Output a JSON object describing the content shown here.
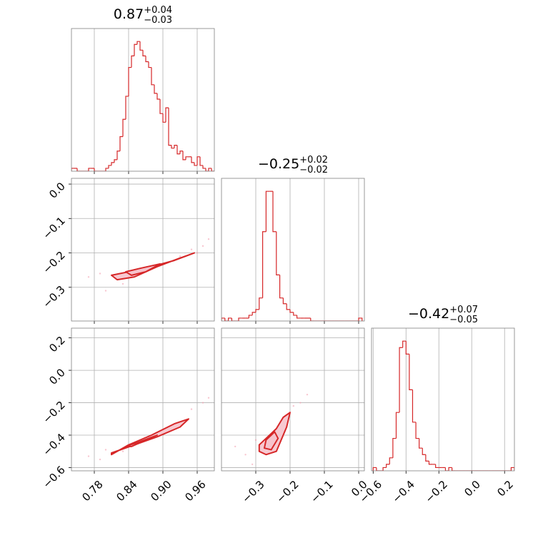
{
  "chart_data": [
    {
      "type": "histogram",
      "color": "#d62728",
      "title": {
        "value": "0.87",
        "upper": "+0.04",
        "lower": "−0.03"
      },
      "bins": [
        0.74,
        0.745,
        0.75,
        0.755,
        0.76,
        0.765,
        0.77,
        0.775,
        0.78,
        0.785,
        0.79,
        0.795,
        0.8,
        0.805,
        0.81,
        0.815,
        0.82,
        0.825,
        0.83,
        0.835,
        0.84,
        0.845,
        0.85,
        0.855,
        0.86,
        0.865,
        0.87,
        0.875,
        0.88,
        0.885,
        0.89,
        0.895,
        0.9,
        0.905,
        0.91,
        0.915,
        0.92,
        0.925,
        0.93,
        0.935,
        0.94,
        0.945,
        0.95,
        0.955,
        0.96,
        0.965,
        0.97,
        0.975,
        0.98,
        0.985,
        0.99
      ],
      "values": [
        1,
        1,
        0,
        0,
        0,
        0,
        1,
        1,
        0,
        0,
        0,
        0,
        1,
        2,
        3,
        4,
        7,
        12,
        18,
        26,
        36,
        40,
        44,
        45,
        42,
        40,
        38,
        36,
        30,
        27,
        25,
        20,
        17,
        22,
        9,
        8,
        9,
        6,
        7,
        4,
        5,
        5,
        3,
        2,
        5,
        2,
        1,
        0,
        1,
        0
      ]
    },
    {
      "type": "contour",
      "color": "#d62728",
      "fill": "#f6c3cc",
      "ylim": [
        -0.398,
        0.0167
      ],
      "yticks": [
        {
          "value": 0.0,
          "label": "0.0"
        },
        {
          "value": -0.1,
          "label": "−0.1"
        },
        {
          "value": -0.2,
          "label": "−0.2"
        },
        {
          "value": -0.3,
          "label": "−0.3"
        }
      ],
      "points": {
        "x": [
          0.77,
          0.79,
          0.8,
          0.93,
          0.95,
          0.97,
          0.98,
          0.83,
          0.96
        ],
        "y": [
          -0.27,
          -0.26,
          -0.31,
          -0.21,
          -0.19,
          -0.18,
          -0.16,
          -0.29,
          -0.2
        ]
      },
      "contours": [
        {
          "x": [
            0.81,
            0.84,
            0.88,
            0.92,
            0.955,
            0.93,
            0.89,
            0.85,
            0.82
          ],
          "y": [
            -0.265,
            -0.255,
            -0.24,
            -0.222,
            -0.2,
            -0.215,
            -0.24,
            -0.27,
            -0.278
          ]
        },
        {
          "x": [
            0.835,
            0.86,
            0.895,
            0.87,
            0.845
          ],
          "y": [
            -0.255,
            -0.245,
            -0.232,
            -0.255,
            -0.265
          ]
        }
      ]
    },
    {
      "type": "histogram",
      "color": "#d62728",
      "title": {
        "value": "−0.25",
        "upper": "+0.02",
        "lower": "−0.02"
      },
      "bins": [
        -0.4,
        -0.39,
        -0.38,
        -0.37,
        -0.36,
        -0.35,
        -0.34,
        -0.33,
        -0.32,
        -0.31,
        -0.3,
        -0.29,
        -0.28,
        -0.27,
        -0.26,
        -0.25,
        -0.24,
        -0.23,
        -0.22,
        -0.21,
        -0.2,
        -0.19,
        -0.18,
        -0.17,
        -0.16,
        -0.15,
        -0.14,
        -0.13,
        -0.12,
        -0.11,
        -0.1,
        -0.09,
        -0.08,
        -0.07,
        -0.06,
        -0.05,
        -0.04,
        -0.03,
        -0.02,
        -0.01,
        0.0,
        0.01
      ],
      "values": [
        1,
        0,
        1,
        0,
        0,
        1,
        1,
        1,
        2,
        3,
        4,
        8,
        31,
        45,
        45,
        31,
        16,
        8,
        6,
        4,
        3,
        2,
        1,
        1,
        1,
        1,
        0,
        0,
        0,
        0,
        0,
        0,
        0,
        0,
        0,
        0,
        0,
        0,
        0,
        0,
        1
      ]
    },
    {
      "type": "contour",
      "color": "#d62728",
      "fill": "#f6c3cc",
      "xlim": [
        0.74,
        0.99
      ],
      "xticks": [
        0.78,
        0.84,
        {
          "value": 0.9,
          "label": "0.90"
        },
        0.96
      ],
      "ylim": [
        -0.62,
        0.26
      ],
      "yticks": [
        0.2,
        {
          "value": 0.0,
          "label": "0.0"
        },
        {
          "value": -0.2,
          "label": "−0.2"
        },
        {
          "value": -0.4,
          "label": "−0.4"
        },
        {
          "value": -0.6,
          "label": "−0.6"
        }
      ],
      "points": {
        "x": [
          0.77,
          0.8,
          0.95,
          0.97,
          0.98,
          0.79,
          0.83
        ],
        "y": [
          -0.53,
          -0.49,
          -0.24,
          -0.2,
          -0.17,
          -0.55,
          -0.5
        ]
      },
      "contours": [
        {
          "x": [
            0.81,
            0.85,
            0.89,
            0.93,
            0.945,
            0.92,
            0.88,
            0.84,
            0.81
          ],
          "y": [
            -0.51,
            -0.46,
            -0.41,
            -0.35,
            -0.3,
            -0.33,
            -0.4,
            -0.46,
            -0.52
          ]
        },
        {
          "x": [
            0.835,
            0.86,
            0.89,
            0.87,
            0.845
          ],
          "y": [
            -0.47,
            -0.44,
            -0.4,
            -0.43,
            -0.47
          ]
        }
      ]
    },
    {
      "type": "contour",
      "color": "#d62728",
      "fill": "#f6c3cc",
      "xlim": [
        -0.4,
        0.0167
      ],
      "xticks": [
        {
          "value": -0.3,
          "label": "−0.3"
        },
        {
          "value": -0.2,
          "label": "−0.2"
        },
        {
          "value": -0.1,
          "label": "−0.1"
        },
        {
          "value": 0.0,
          "label": "0.0"
        }
      ],
      "points": {
        "x": [
          -0.36,
          -0.33,
          -0.31,
          -0.22,
          -0.19,
          -0.17,
          -0.15,
          -0.3
        ],
        "y": [
          -0.47,
          -0.52,
          -0.58,
          -0.3,
          -0.22,
          -0.2,
          -0.15,
          -0.43
        ]
      },
      "contours": [
        {
          "x": [
            -0.29,
            -0.27,
            -0.24,
            -0.21,
            -0.2,
            -0.22,
            -0.24,
            -0.27,
            -0.29
          ],
          "y": [
            -0.5,
            -0.52,
            -0.5,
            -0.35,
            -0.26,
            -0.29,
            -0.36,
            -0.42,
            -0.46
          ]
        },
        {
          "x": [
            -0.275,
            -0.255,
            -0.235,
            -0.245,
            -0.27
          ],
          "y": [
            -0.48,
            -0.49,
            -0.42,
            -0.38,
            -0.43
          ]
        }
      ]
    },
    {
      "type": "histogram",
      "color": "#d62728",
      "title": {
        "value": "−0.42",
        "upper": "+0.07",
        "lower": "−0.05"
      },
      "xlim": [
        -0.61,
        0.26
      ],
      "xticks": [
        {
          "value": -0.6,
          "label": "−0.6"
        },
        {
          "value": -0.4,
          "label": "−0.4"
        },
        {
          "value": -0.2,
          "label": "−0.2"
        },
        {
          "value": 0.0,
          "label": "0.0"
        },
        0.2
      ],
      "bins": [
        -0.6,
        -0.58,
        -0.56,
        -0.54,
        -0.52,
        -0.5,
        -0.48,
        -0.46,
        -0.44,
        -0.42,
        -0.4,
        -0.38,
        -0.36,
        -0.34,
        -0.32,
        -0.3,
        -0.28,
        -0.26,
        -0.24,
        -0.22,
        -0.2,
        -0.18,
        -0.16,
        -0.14,
        -0.12,
        -0.1,
        -0.08,
        -0.06,
        -0.04,
        -0.02,
        0.0,
        0.02,
        0.04,
        0.06,
        0.08,
        0.1,
        0.12,
        0.14,
        0.16,
        0.18,
        0.2,
        0.22,
        0.24,
        0.26
      ],
      "values": [
        1,
        0,
        0,
        1,
        2,
        4,
        10,
        18,
        38,
        40,
        36,
        25,
        15,
        10,
        7,
        5,
        3,
        2,
        2,
        1,
        1,
        1,
        0,
        1,
        0,
        0,
        0,
        0,
        0,
        0,
        0,
        0,
        0,
        0,
        0,
        0,
        0,
        0,
        0,
        0,
        0,
        0,
        1
      ]
    }
  ]
}
